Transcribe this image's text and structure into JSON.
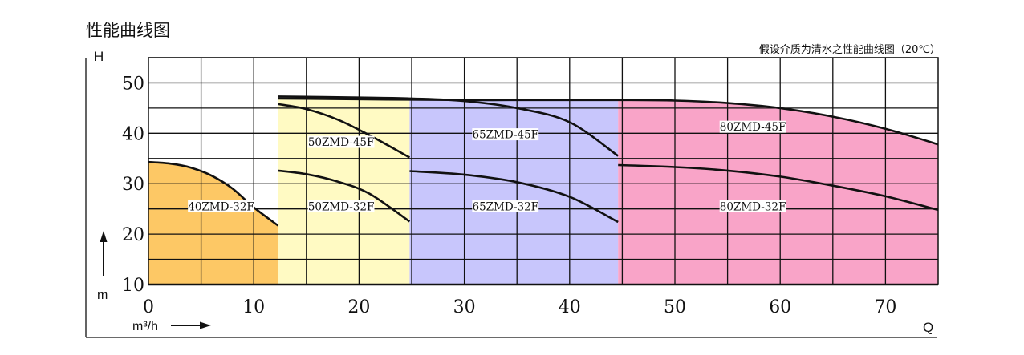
{
  "title": "性能曲线图",
  "note": "假设介质为清水之性能曲线图（20℃）",
  "chart_data": {
    "type": "area",
    "xlabel": "Q",
    "ylabel": "H",
    "x_unit": "m³/h",
    "y_unit": "m",
    "xlim": [
      0,
      75
    ],
    "ylim": [
      10,
      55
    ],
    "xticks": [
      0,
      10,
      20,
      30,
      40,
      50,
      60,
      70
    ],
    "yticks": [
      10,
      20,
      30,
      40,
      50
    ],
    "grid": true,
    "regions": [
      {
        "label": "40ZMD-32F",
        "range": [
          0,
          12.3
        ],
        "color": "#fdc865",
        "labels_at": [
          [
            10,
            25.5
          ]
        ],
        "top_curve": [
          [
            0,
            34.3
          ],
          [
            2,
            34.0
          ],
          [
            4,
            33.2
          ],
          [
            6,
            31.6
          ],
          [
            8,
            29.0
          ],
          [
            10,
            25.3
          ],
          [
            12.3,
            21.7
          ]
        ]
      },
      {
        "label": "50ZMD",
        "range": [
          12.3,
          24.8
        ],
        "color": "#fffac3",
        "top_curve": [
          [
            12.3,
            47.0
          ],
          [
            16,
            47.0
          ],
          [
            20,
            46.9
          ],
          [
            24.8,
            46.8
          ]
        ]
      },
      {
        "label": "65ZMD",
        "range": [
          24.8,
          44.6
        ],
        "color": "#c8c6fc",
        "top_curve": [
          [
            24.8,
            46.8
          ],
          [
            30,
            46.7
          ],
          [
            35,
            46.6
          ],
          [
            44.6,
            46.6
          ]
        ]
      },
      {
        "label": "80ZMD",
        "range": [
          44.6,
          75
        ],
        "color": "#f9a4c8",
        "top_curve": [
          [
            44.6,
            46.6
          ],
          [
            50,
            46.5
          ],
          [
            55,
            46.0
          ],
          [
            60,
            45.0
          ],
          [
            65,
            43.3
          ],
          [
            70,
            40.9
          ],
          [
            75,
            37.8
          ]
        ]
      }
    ],
    "series": [
      {
        "name": "40ZMD-32F",
        "points": [
          [
            0,
            34.3
          ],
          [
            2,
            34.0
          ],
          [
            4,
            33.2
          ],
          [
            6,
            31.6
          ],
          [
            8,
            29.0
          ],
          [
            10,
            25.3
          ],
          [
            12.3,
            21.7
          ]
        ]
      },
      {
        "name": "50ZMD-45F",
        "points": [
          [
            12.3,
            45.8
          ],
          [
            15,
            44.8
          ],
          [
            18,
            42.7
          ],
          [
            21,
            39.6
          ],
          [
            24.8,
            35.2
          ]
        ]
      },
      {
        "name": "50ZMD-32F",
        "points": [
          [
            12.3,
            32.6
          ],
          [
            15,
            31.9
          ],
          [
            18,
            30.4
          ],
          [
            21,
            28.0
          ],
          [
            24.8,
            22.5
          ]
        ]
      },
      {
        "name": "65ZMD-45F",
        "points": [
          [
            12.3,
            47.3
          ],
          [
            20,
            47.1
          ],
          [
            25,
            46.9
          ],
          [
            30,
            46.4
          ],
          [
            35,
            45.0
          ],
          [
            40,
            42.2
          ],
          [
            44.6,
            35.5
          ]
        ]
      },
      {
        "name": "65ZMD-32F",
        "points": [
          [
            24.8,
            32.5
          ],
          [
            30,
            31.8
          ],
          [
            35,
            30.3
          ],
          [
            40,
            27.4
          ],
          [
            44.6,
            22.4
          ]
        ]
      },
      {
        "name": "80ZMD-45F",
        "points": [
          [
            12.3,
            46.9
          ],
          [
            30,
            46.6
          ],
          [
            44.6,
            46.6
          ],
          [
            50,
            46.5
          ],
          [
            55,
            46.0
          ],
          [
            60,
            45.0
          ],
          [
            65,
            43.3
          ],
          [
            70,
            40.9
          ],
          [
            75,
            37.8
          ]
        ]
      },
      {
        "name": "80ZMD-32F",
        "points": [
          [
            44.6,
            33.7
          ],
          [
            50,
            33.3
          ],
          [
            55,
            32.6
          ],
          [
            60,
            31.4
          ],
          [
            65,
            29.6
          ],
          [
            70,
            27.5
          ],
          [
            75,
            24.8
          ]
        ]
      }
    ],
    "labels": [
      {
        "text": "40ZMD-32F",
        "at": [
          6.9,
          25.5
        ]
      },
      {
        "text": "50ZMD-45F",
        "at": [
          18.3,
          38.3
        ]
      },
      {
        "text": "50ZMD-32F",
        "at": [
          18.3,
          25.5
        ]
      },
      {
        "text": "65ZMD-45F",
        "at": [
          33.9,
          39.8
        ]
      },
      {
        "text": "65ZMD-32F",
        "at": [
          33.9,
          25.5
        ]
      },
      {
        "text": "80ZMD-45F",
        "at": [
          57.4,
          41.3
        ]
      },
      {
        "text": "80ZMD-32F",
        "at": [
          57.4,
          25.5
        ]
      }
    ]
  }
}
